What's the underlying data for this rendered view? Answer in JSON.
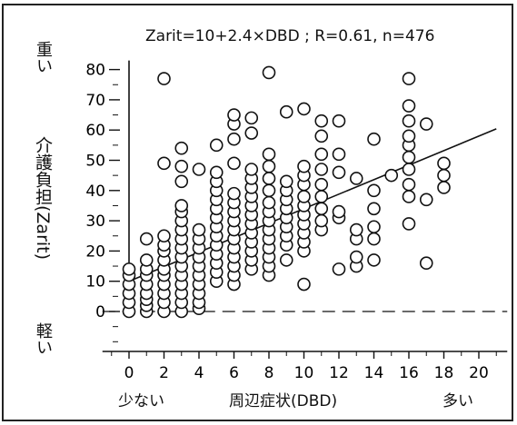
{
  "chart_data": {
    "type": "scatter",
    "title": "Zarit=10+2.4×DBD ; R=0.61,  n=476",
    "xlabel": "周辺症状(DBD)",
    "ylabel": "介護負担(Zarit)",
    "x_low_label": "少ない",
    "x_high_label": "多い",
    "y_high_label": "重い",
    "y_low_label": "軽い",
    "xlim": [
      -1,
      21
    ],
    "ylim": [
      -10,
      83
    ],
    "xticks": [
      0,
      2,
      4,
      6,
      8,
      10,
      12,
      14,
      16,
      18,
      20
    ],
    "yticks": [
      0,
      10,
      20,
      30,
      40,
      50,
      60,
      70,
      80
    ],
    "regression": {
      "intercept": 10,
      "slope": 2.4,
      "x_range": [
        0,
        21
      ]
    },
    "grid": false,
    "legend": "none",
    "points": [
      [
        0,
        0
      ],
      [
        0,
        3
      ],
      [
        0,
        6
      ],
      [
        0,
        9
      ],
      [
        0,
        12
      ],
      [
        0,
        14
      ],
      [
        1,
        0
      ],
      [
        1,
        2
      ],
      [
        1,
        4
      ],
      [
        1,
        6
      ],
      [
        1,
        9
      ],
      [
        1,
        12
      ],
      [
        1,
        14
      ],
      [
        1,
        17
      ],
      [
        1,
        24
      ],
      [
        2,
        0
      ],
      [
        2,
        3
      ],
      [
        2,
        6
      ],
      [
        2,
        9
      ],
      [
        2,
        12
      ],
      [
        2,
        14
      ],
      [
        2,
        17
      ],
      [
        2,
        20
      ],
      [
        2,
        22
      ],
      [
        2,
        25
      ],
      [
        2,
        49
      ],
      [
        2,
        77
      ],
      [
        3,
        0
      ],
      [
        3,
        3
      ],
      [
        3,
        6
      ],
      [
        3,
        9
      ],
      [
        3,
        12
      ],
      [
        3,
        15
      ],
      [
        3,
        18
      ],
      [
        3,
        21
      ],
      [
        3,
        24
      ],
      [
        3,
        27
      ],
      [
        3,
        30
      ],
      [
        3,
        33
      ],
      [
        3,
        35
      ],
      [
        3,
        43
      ],
      [
        3,
        48
      ],
      [
        3,
        54
      ],
      [
        4,
        1
      ],
      [
        4,
        3
      ],
      [
        4,
        6
      ],
      [
        4,
        9
      ],
      [
        4,
        12
      ],
      [
        4,
        15
      ],
      [
        4,
        18
      ],
      [
        4,
        21
      ],
      [
        4,
        24
      ],
      [
        4,
        27
      ],
      [
        4,
        47
      ],
      [
        5,
        10
      ],
      [
        5,
        13
      ],
      [
        5,
        16
      ],
      [
        5,
        19
      ],
      [
        5,
        22
      ],
      [
        5,
        25
      ],
      [
        5,
        28
      ],
      [
        5,
        31
      ],
      [
        5,
        34
      ],
      [
        5,
        37
      ],
      [
        5,
        40
      ],
      [
        5,
        43
      ],
      [
        5,
        46
      ],
      [
        5,
        55
      ],
      [
        6,
        9
      ],
      [
        6,
        12
      ],
      [
        6,
        15
      ],
      [
        6,
        18
      ],
      [
        6,
        21
      ],
      [
        6,
        24
      ],
      [
        6,
        27
      ],
      [
        6,
        30
      ],
      [
        6,
        33
      ],
      [
        6,
        36
      ],
      [
        6,
        39
      ],
      [
        6,
        49
      ],
      [
        6,
        57
      ],
      [
        6,
        62
      ],
      [
        6,
        65
      ],
      [
        7,
        14
      ],
      [
        7,
        17
      ],
      [
        7,
        20
      ],
      [
        7,
        23
      ],
      [
        7,
        26
      ],
      [
        7,
        29
      ],
      [
        7,
        32
      ],
      [
        7,
        35
      ],
      [
        7,
        38
      ],
      [
        7,
        41
      ],
      [
        7,
        44
      ],
      [
        7,
        47
      ],
      [
        7,
        59
      ],
      [
        7,
        64
      ],
      [
        8,
        12
      ],
      [
        8,
        15
      ],
      [
        8,
        18
      ],
      [
        8,
        21
      ],
      [
        8,
        24
      ],
      [
        8,
        27
      ],
      [
        8,
        30
      ],
      [
        8,
        33
      ],
      [
        8,
        36
      ],
      [
        8,
        40
      ],
      [
        8,
        44
      ],
      [
        8,
        48
      ],
      [
        8,
        52
      ],
      [
        8,
        79
      ],
      [
        9,
        17
      ],
      [
        9,
        22
      ],
      [
        9,
        25
      ],
      [
        9,
        28
      ],
      [
        9,
        31
      ],
      [
        9,
        34
      ],
      [
        9,
        37
      ],
      [
        9,
        40
      ],
      [
        9,
        43
      ],
      [
        9,
        66
      ],
      [
        10,
        9
      ],
      [
        10,
        20
      ],
      [
        10,
        23
      ],
      [
        10,
        26
      ],
      [
        10,
        29
      ],
      [
        10,
        32
      ],
      [
        10,
        35
      ],
      [
        10,
        38
      ],
      [
        10,
        42
      ],
      [
        10,
        45
      ],
      [
        10,
        48
      ],
      [
        10,
        67
      ],
      [
        11,
        27
      ],
      [
        11,
        30
      ],
      [
        11,
        34
      ],
      [
        11,
        38
      ],
      [
        11,
        42
      ],
      [
        11,
        47
      ],
      [
        11,
        52
      ],
      [
        11,
        58
      ],
      [
        11,
        63
      ],
      [
        12,
        14
      ],
      [
        12,
        31
      ],
      [
        12,
        33
      ],
      [
        12,
        46
      ],
      [
        12,
        52
      ],
      [
        12,
        63
      ],
      [
        13,
        15
      ],
      [
        13,
        18
      ],
      [
        13,
        24
      ],
      [
        13,
        27
      ],
      [
        13,
        44
      ],
      [
        14,
        17
      ],
      [
        14,
        24
      ],
      [
        14,
        28
      ],
      [
        14,
        34
      ],
      [
        14,
        40
      ],
      [
        14,
        57
      ],
      [
        15,
        45
      ],
      [
        16,
        29
      ],
      [
        16,
        38
      ],
      [
        16,
        42
      ],
      [
        16,
        47
      ],
      [
        16,
        51
      ],
      [
        16,
        55
      ],
      [
        16,
        58
      ],
      [
        16,
        63
      ],
      [
        16,
        68
      ],
      [
        16,
        77
      ],
      [
        17,
        16
      ],
      [
        17,
        37
      ],
      [
        17,
        62
      ],
      [
        18,
        41
      ],
      [
        18,
        45
      ],
      [
        18,
        49
      ]
    ]
  }
}
